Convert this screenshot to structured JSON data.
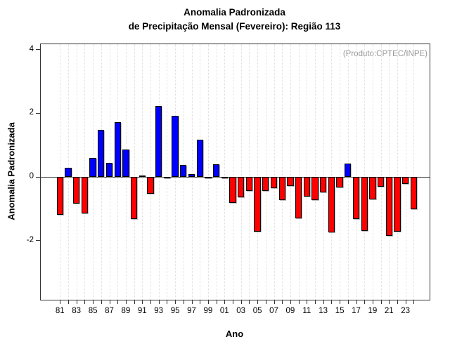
{
  "header": {
    "title_line1": "Anomalia Padronizada",
    "title_line2": "de Precipitação Mensal (Fevereiro): Região 113"
  },
  "chart_data": {
    "type": "bar",
    "title": "Anomalia Padronizada de Precipitação Mensal (Fevereiro): Região 113",
    "xlabel": "Ano",
    "ylabel": "Anomalia Padronizada",
    "annotation": "(Produto:CPTEC/INPE)",
    "categories": [
      "81",
      "82",
      "83",
      "84",
      "85",
      "86",
      "87",
      "88",
      "89",
      "90",
      "91",
      "92",
      "93",
      "94",
      "95",
      "96",
      "97",
      "98",
      "99",
      "00",
      "01",
      "02",
      "03",
      "04",
      "05",
      "06",
      "07",
      "08",
      "09",
      "10",
      "11",
      "12",
      "13",
      "14",
      "15",
      "16",
      "17",
      "18",
      "19",
      "20",
      "21",
      "22",
      "23",
      "24"
    ],
    "values": [
      -1.2,
      0.28,
      -0.83,
      -1.15,
      0.6,
      1.48,
      0.45,
      1.72,
      0.85,
      -1.33,
      0.05,
      -0.53,
      2.22,
      -0.05,
      1.91,
      0.38,
      0.08,
      1.18,
      -0.02,
      0.39,
      -0.04,
      -0.82,
      -0.65,
      -0.44,
      -1.72,
      -0.43,
      -0.35,
      -0.72,
      -0.29,
      -1.31,
      -0.62,
      -0.72,
      -0.48,
      -1.74,
      -0.34,
      0.43,
      -1.33,
      -1.7,
      -0.71,
      -0.31,
      -1.86,
      -1.73,
      -0.22,
      -1.02
    ],
    "x_tick_labels_shown": [
      "81",
      "83",
      "85",
      "87",
      "89",
      "91",
      "93",
      "95",
      "97",
      "99",
      "01",
      "03",
      "05",
      "07",
      "09",
      "11",
      "13",
      "15",
      "17",
      "19",
      "21",
      "23"
    ],
    "yticks": [
      4,
      2,
      0,
      -2
    ],
    "ylim": [
      -3.86,
      4.17
    ],
    "grid": "vertical-dotted",
    "legend": "none",
    "positive_color": "#0000ff",
    "negative_color": "#ff0000",
    "bar_border_color": "#000000",
    "annotation_color": "#999999"
  }
}
